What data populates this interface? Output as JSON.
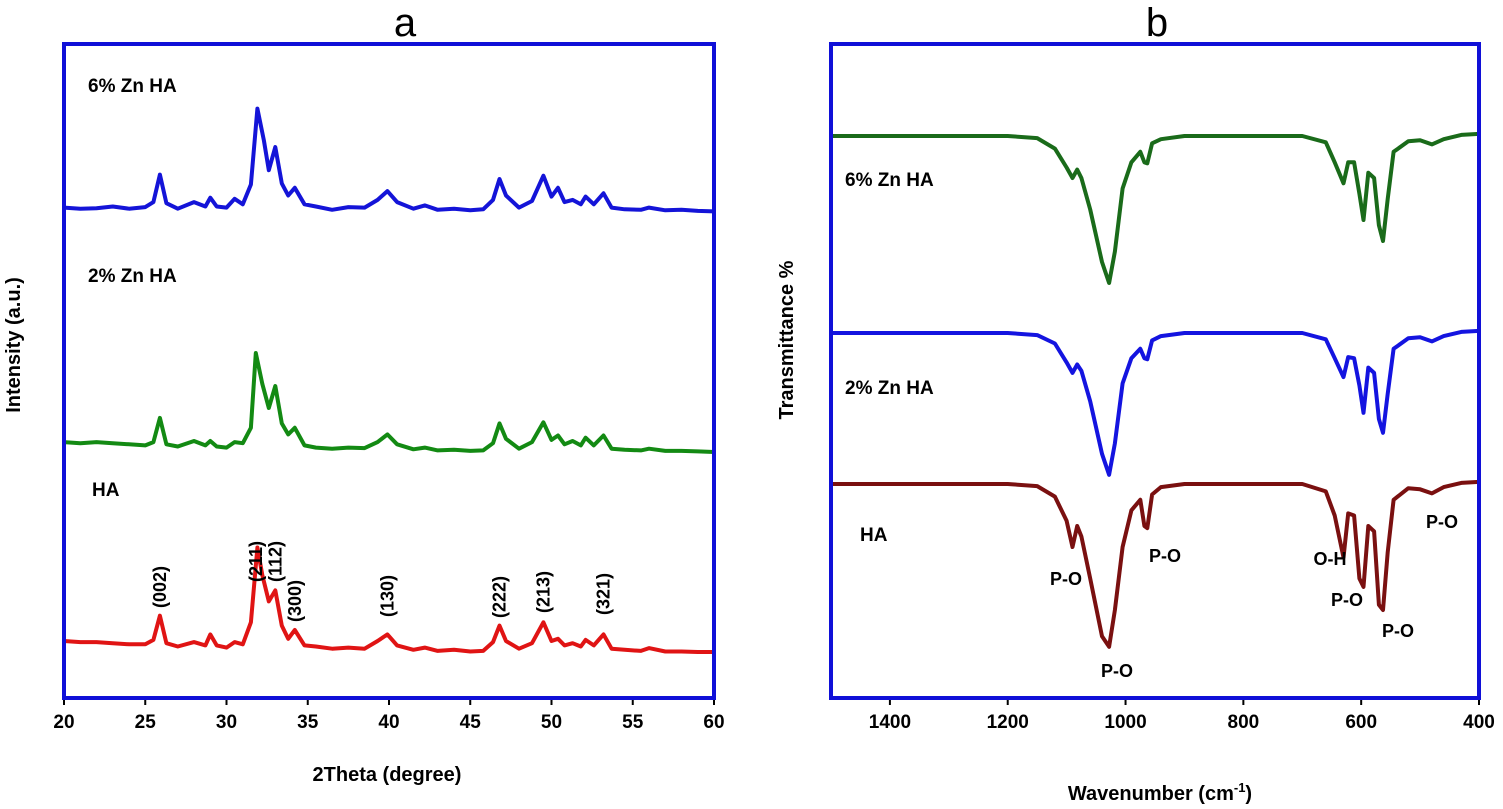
{
  "chart_data": [
    {
      "panel": "a",
      "type": "line",
      "xlabel": "2Theta (degree)",
      "ylabel": "Intensity (a.u.)",
      "xlim": [
        20,
        60
      ],
      "xticks": [
        20,
        25,
        30,
        35,
        40,
        45,
        50,
        55,
        60
      ],
      "yticks_shown": false,
      "grid": false,
      "series": [
        {
          "name": "6% Zn HA",
          "color": "#1414d8",
          "x": [
            20,
            21,
            22,
            23,
            24,
            25,
            25.5,
            25.9,
            26.3,
            27,
            28,
            28.7,
            29,
            29.4,
            30,
            30.5,
            31,
            31.5,
            31.9,
            32.3,
            32.6,
            33,
            33.4,
            33.8,
            34.2,
            34.8,
            35.5,
            36.5,
            37.5,
            38.5,
            39.3,
            39.9,
            40.5,
            41.5,
            42.2,
            43,
            44,
            45,
            45.8,
            46.4,
            46.8,
            47.2,
            48,
            48.8,
            49.5,
            50,
            50.4,
            50.8,
            51.3,
            51.8,
            52.1,
            52.6,
            53.2,
            53.7,
            54.5,
            55.5,
            56,
            57,
            58,
            59,
            60
          ],
          "y": [
            0.4,
            0.3,
            0.35,
            0.5,
            0.3,
            0.45,
            0.9,
            3.4,
            0.8,
            0.3,
            0.9,
            0.5,
            1.3,
            0.5,
            0.4,
            1.2,
            0.7,
            2.5,
            9.4,
            6.5,
            3.8,
            5.9,
            2.6,
            1.5,
            2.2,
            0.7,
            0.5,
            0.2,
            0.45,
            0.4,
            1.1,
            1.9,
            0.9,
            0.3,
            0.6,
            0.2,
            0.3,
            0.15,
            0.25,
            1.1,
            3.0,
            1.5,
            0.4,
            1.0,
            3.3,
            1.4,
            2.2,
            0.9,
            1.1,
            0.7,
            1.4,
            0.7,
            1.7,
            0.4,
            0.25,
            0.2,
            0.4,
            0.15,
            0.2,
            0.1,
            0.05
          ]
        },
        {
          "name": "2% Zn HA",
          "color": "#138a13",
          "x": [
            20,
            21,
            22,
            23,
            24,
            25,
            25.5,
            25.9,
            26.3,
            27,
            28,
            28.7,
            29,
            29.4,
            30,
            30.5,
            31,
            31.5,
            31.8,
            32.2,
            32.6,
            33,
            33.4,
            33.8,
            34.2,
            34.8,
            35.5,
            36.5,
            37.5,
            38.5,
            39.3,
            39.9,
            40.5,
            41.5,
            42.2,
            43,
            44,
            45,
            45.8,
            46.4,
            46.8,
            47.2,
            48,
            48.8,
            49.5,
            50,
            50.4,
            50.8,
            51.3,
            51.8,
            52.1,
            52.6,
            53.2,
            53.7,
            54.5,
            55.5,
            56,
            57,
            58,
            59,
            60
          ],
          "y": [
            0.9,
            0.8,
            0.9,
            0.8,
            0.7,
            0.6,
            0.9,
            3.1,
            0.7,
            0.5,
            1.0,
            0.6,
            1.0,
            0.5,
            0.4,
            0.9,
            0.8,
            2.2,
            9.0,
            6.2,
            4.0,
            6.0,
            2.6,
            1.6,
            2.2,
            0.6,
            0.4,
            0.3,
            0.4,
            0.35,
            0.9,
            1.6,
            0.7,
            0.25,
            0.4,
            0.15,
            0.2,
            0.1,
            0.15,
            0.8,
            2.6,
            1.2,
            0.3,
            0.9,
            2.7,
            1.1,
            1.5,
            0.7,
            1.0,
            0.6,
            1.3,
            0.6,
            1.5,
            0.3,
            0.2,
            0.15,
            0.3,
            0.1,
            0.1,
            0.05,
            0.0
          ]
        },
        {
          "name": "HA",
          "color": "#e01414",
          "x": [
            20,
            21,
            22,
            23,
            24,
            25,
            25.5,
            25.9,
            26.3,
            27,
            28,
            28.7,
            29,
            29.4,
            30,
            30.5,
            31,
            31.5,
            31.9,
            32.2,
            32.6,
            33,
            33.4,
            33.8,
            34.2,
            34.8,
            35.5,
            36.5,
            37.5,
            38.5,
            39.3,
            39.9,
            40.5,
            41.5,
            42.2,
            43,
            44,
            45,
            45.8,
            46.4,
            46.8,
            47.2,
            48,
            48.8,
            49.5,
            50,
            50.4,
            50.8,
            51.3,
            51.8,
            52.1,
            52.6,
            53.2,
            53.7,
            54.5,
            55.5,
            56,
            57,
            58,
            59,
            60
          ],
          "y": [
            1.0,
            0.9,
            0.9,
            0.8,
            0.7,
            0.7,
            1.1,
            3.3,
            0.8,
            0.5,
            0.9,
            0.6,
            1.6,
            0.6,
            0.4,
            0.9,
            0.7,
            2.7,
            9.5,
            7.0,
            4.6,
            5.6,
            2.4,
            1.2,
            2.0,
            0.6,
            0.5,
            0.3,
            0.4,
            0.3,
            1.0,
            1.6,
            0.6,
            0.2,
            0.4,
            0.1,
            0.2,
            0.05,
            0.1,
            0.9,
            2.4,
            1.0,
            0.3,
            0.8,
            2.7,
            1.0,
            1.2,
            0.6,
            0.8,
            0.5,
            1.1,
            0.6,
            1.6,
            0.3,
            0.2,
            0.1,
            0.35,
            0.05,
            0.05,
            0.0,
            0.0
          ]
        }
      ],
      "annotations": [
        {
          "text": "(002)",
          "x": 25.9
        },
        {
          "text": "(211)",
          "x": 31.8
        },
        {
          "text": "(112)",
          "x": 33.0
        },
        {
          "text": "(300)",
          "x": 34.2
        },
        {
          "text": "(130)",
          "x": 39.9
        },
        {
          "text": "(222)",
          "x": 46.8
        },
        {
          "text": "(213)",
          "x": 49.5
        },
        {
          "text": "(321)",
          "x": 53.2
        }
      ]
    },
    {
      "panel": "b",
      "type": "line",
      "xlabel": "Wavenumber (cm",
      "xlabel_superscript": "-1",
      "xlabel_suffix": ")",
      "ylabel": "Transmittance %",
      "xlim": [
        1500,
        400
      ],
      "xticks": [
        1400,
        1200,
        1000,
        800,
        600,
        400
      ],
      "yticks_shown": false,
      "grid": false,
      "series": [
        {
          "name": "6% Zn HA",
          "color": "#1a6b1a",
          "x": [
            1500,
            1400,
            1300,
            1200,
            1150,
            1120,
            1100,
            1090,
            1082,
            1075,
            1060,
            1040,
            1028,
            1018,
            1005,
            990,
            975,
            968,
            963,
            955,
            940,
            900,
            800,
            700,
            660,
            645,
            630,
            622,
            612,
            603,
            596,
            588,
            578,
            570,
            563,
            555,
            545,
            520,
            500,
            480,
            460,
            430,
            400
          ],
          "y": [
            0,
            0,
            0,
            0,
            -0.2,
            -1.2,
            -3.0,
            -4.0,
            -3.2,
            -4.0,
            -7.0,
            -12.0,
            -14.0,
            -11.0,
            -5.0,
            -2.5,
            -1.5,
            -2.5,
            -2.6,
            -0.7,
            -0.3,
            0,
            0,
            0,
            -0.6,
            -2.5,
            -4.5,
            -2.5,
            -2.5,
            -5.5,
            -8.0,
            -3.5,
            -4.0,
            -8.5,
            -10.0,
            -6.0,
            -1.5,
            -0.5,
            -0.4,
            -0.8,
            -0.3,
            0.1,
            0.2
          ]
        },
        {
          "name": "2% Zn HA",
          "color": "#1414e0",
          "x": [
            1500,
            1400,
            1300,
            1200,
            1150,
            1120,
            1100,
            1090,
            1082,
            1075,
            1060,
            1040,
            1028,
            1018,
            1005,
            990,
            975,
            968,
            963,
            955,
            940,
            900,
            800,
            700,
            660,
            645,
            630,
            622,
            612,
            603,
            596,
            588,
            578,
            570,
            563,
            555,
            545,
            520,
            500,
            480,
            460,
            430,
            400
          ],
          "y": [
            0,
            0,
            0,
            0,
            -0.2,
            -1.0,
            -2.8,
            -3.8,
            -3.0,
            -3.6,
            -6.5,
            -11.5,
            -13.5,
            -10.5,
            -4.8,
            -2.4,
            -1.5,
            -2.4,
            -2.5,
            -0.7,
            -0.3,
            0,
            0,
            0,
            -0.6,
            -2.4,
            -4.2,
            -2.3,
            -2.4,
            -5.0,
            -7.6,
            -3.3,
            -3.8,
            -8.2,
            -9.5,
            -5.8,
            -1.5,
            -0.5,
            -0.4,
            -0.8,
            -0.3,
            0.1,
            0.2
          ]
        },
        {
          "name": "HA",
          "color": "#7a1010",
          "x": [
            1500,
            1400,
            1300,
            1200,
            1150,
            1120,
            1100,
            1090,
            1082,
            1075,
            1060,
            1040,
            1028,
            1018,
            1005,
            990,
            975,
            968,
            963,
            955,
            940,
            900,
            800,
            700,
            660,
            645,
            630,
            622,
            612,
            603,
            596,
            588,
            578,
            570,
            563,
            555,
            545,
            520,
            500,
            480,
            460,
            430,
            400
          ],
          "y": [
            0,
            0,
            0,
            0,
            -0.2,
            -1.2,
            -3.5,
            -6.0,
            -4.0,
            -5.0,
            -9.0,
            -14.5,
            -15.5,
            -12.0,
            -6.0,
            -2.5,
            -1.5,
            -4.0,
            -4.2,
            -1.0,
            -0.3,
            0,
            0,
            0,
            -0.7,
            -3.0,
            -7.0,
            -2.8,
            -3.0,
            -9.0,
            -9.8,
            -4.0,
            -4.5,
            -11.5,
            -12.0,
            -6.5,
            -1.5,
            -0.4,
            -0.5,
            -0.9,
            -0.3,
            0.1,
            0.2
          ]
        }
      ],
      "annotations": [
        {
          "text": "P-O",
          "x": 1085
        },
        {
          "text": "P-O",
          "x": 1028
        },
        {
          "text": "P-O",
          "x": 963
        },
        {
          "text": "O-H",
          "x": 630
        },
        {
          "text": "P-O",
          "x": 603
        },
        {
          "text": "P-O",
          "x": 565
        },
        {
          "text": "P-O",
          "x": 472
        }
      ]
    }
  ]
}
